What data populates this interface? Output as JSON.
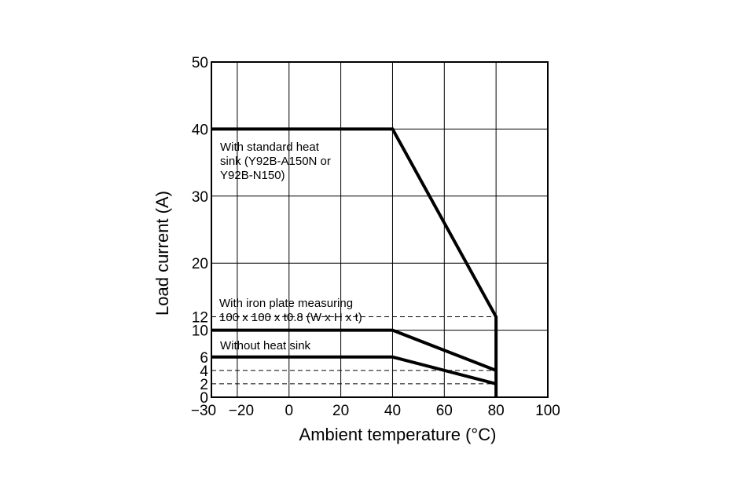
{
  "chart_data": {
    "type": "line",
    "title": "",
    "xlabel": "Ambient temperature (°C)",
    "ylabel": "Load current (A)",
    "xlim": [
      -30,
      100
    ],
    "ylim": [
      0,
      50
    ],
    "grid": true,
    "x_ticks": [
      {
        "value": -30,
        "label": "−30"
      },
      {
        "value": -20,
        "label": "−20"
      },
      {
        "value": 0,
        "label": "0"
      },
      {
        "value": 20,
        "label": "20"
      },
      {
        "value": 40,
        "label": "40"
      },
      {
        "value": 60,
        "label": "60"
      },
      {
        "value": 80,
        "label": "80"
      },
      {
        "value": 100,
        "label": "100"
      }
    ],
    "y_ticks": [
      {
        "value": 0,
        "label": "0"
      },
      {
        "value": 2,
        "label": "2"
      },
      {
        "value": 4,
        "label": "4"
      },
      {
        "value": 6,
        "label": "6"
      },
      {
        "value": 10,
        "label": "10"
      },
      {
        "value": 12,
        "label": "12"
      },
      {
        "value": 20,
        "label": "20"
      },
      {
        "value": 30,
        "label": "30"
      },
      {
        "value": 40,
        "label": "40"
      },
      {
        "value": 50,
        "label": "50"
      }
    ],
    "x_grid": [
      -20,
      0,
      20,
      40,
      60,
      80
    ],
    "y_grid": [
      10,
      20,
      30,
      40
    ],
    "series": [
      {
        "id": "standard",
        "x": [
          -30,
          40,
          80,
          80
        ],
        "y": [
          40,
          40,
          12,
          0
        ],
        "annotation": [
          "With standard heat",
          "sink (Y92B-A150N or",
          "Y92B-N150)"
        ]
      },
      {
        "id": "iron",
        "x": [
          -30,
          40,
          80
        ],
        "y": [
          10,
          10,
          4
        ],
        "annotation": [
          "With iron plate measuring",
          "100 x 100 x t0.8 (W x H x t)"
        ]
      },
      {
        "id": "none",
        "x": [
          -30,
          40,
          80
        ],
        "y": [
          6,
          6,
          2
        ],
        "annotation": [
          "Without heat sink"
        ]
      }
    ],
    "reference_lines": [
      {
        "y": 12,
        "from_x": -30,
        "to_x": 80
      },
      {
        "y": 4,
        "from_x": -30,
        "to_x": 80
      },
      {
        "y": 2,
        "from_x": -30,
        "to_x": 80
      }
    ]
  }
}
